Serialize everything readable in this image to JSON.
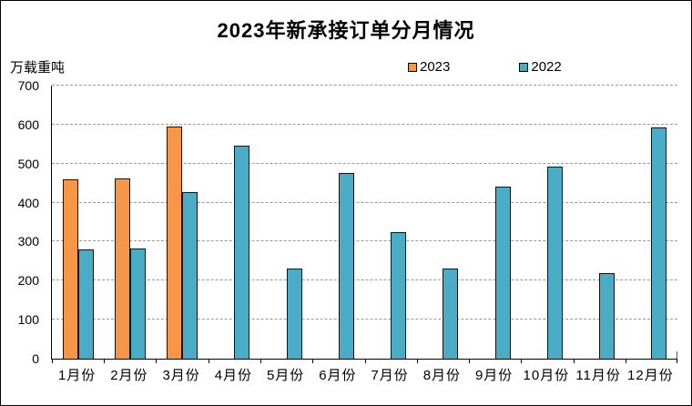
{
  "chart_data": {
    "type": "bar",
    "title": "2023年新承接订单分月情况",
    "unit_label": "万载重吨",
    "xlabel": "",
    "ylabel": "万载重吨",
    "categories": [
      "1月份",
      "2月份",
      "3月份",
      "4月份",
      "5月份",
      "6月份",
      "7月份",
      "8月份",
      "9月份",
      "10月份",
      "11月份",
      "12月份"
    ],
    "series": [
      {
        "name": "2023",
        "color": "#F79646",
        "values": [
          460,
          462,
          594,
          null,
          null,
          null,
          null,
          null,
          null,
          null,
          null,
          null
        ]
      },
      {
        "name": "2022",
        "color": "#4BACC6",
        "values": [
          280,
          283,
          428,
          547,
          230,
          477,
          325,
          232,
          440,
          493,
          220,
          592
        ]
      }
    ],
    "ylim": [
      0,
      700
    ],
    "ytick_step": 100,
    "grid": "horizontal-dashed",
    "grid_color": "#999999",
    "axis_color": "#000000",
    "legend_position": "top-right"
  }
}
